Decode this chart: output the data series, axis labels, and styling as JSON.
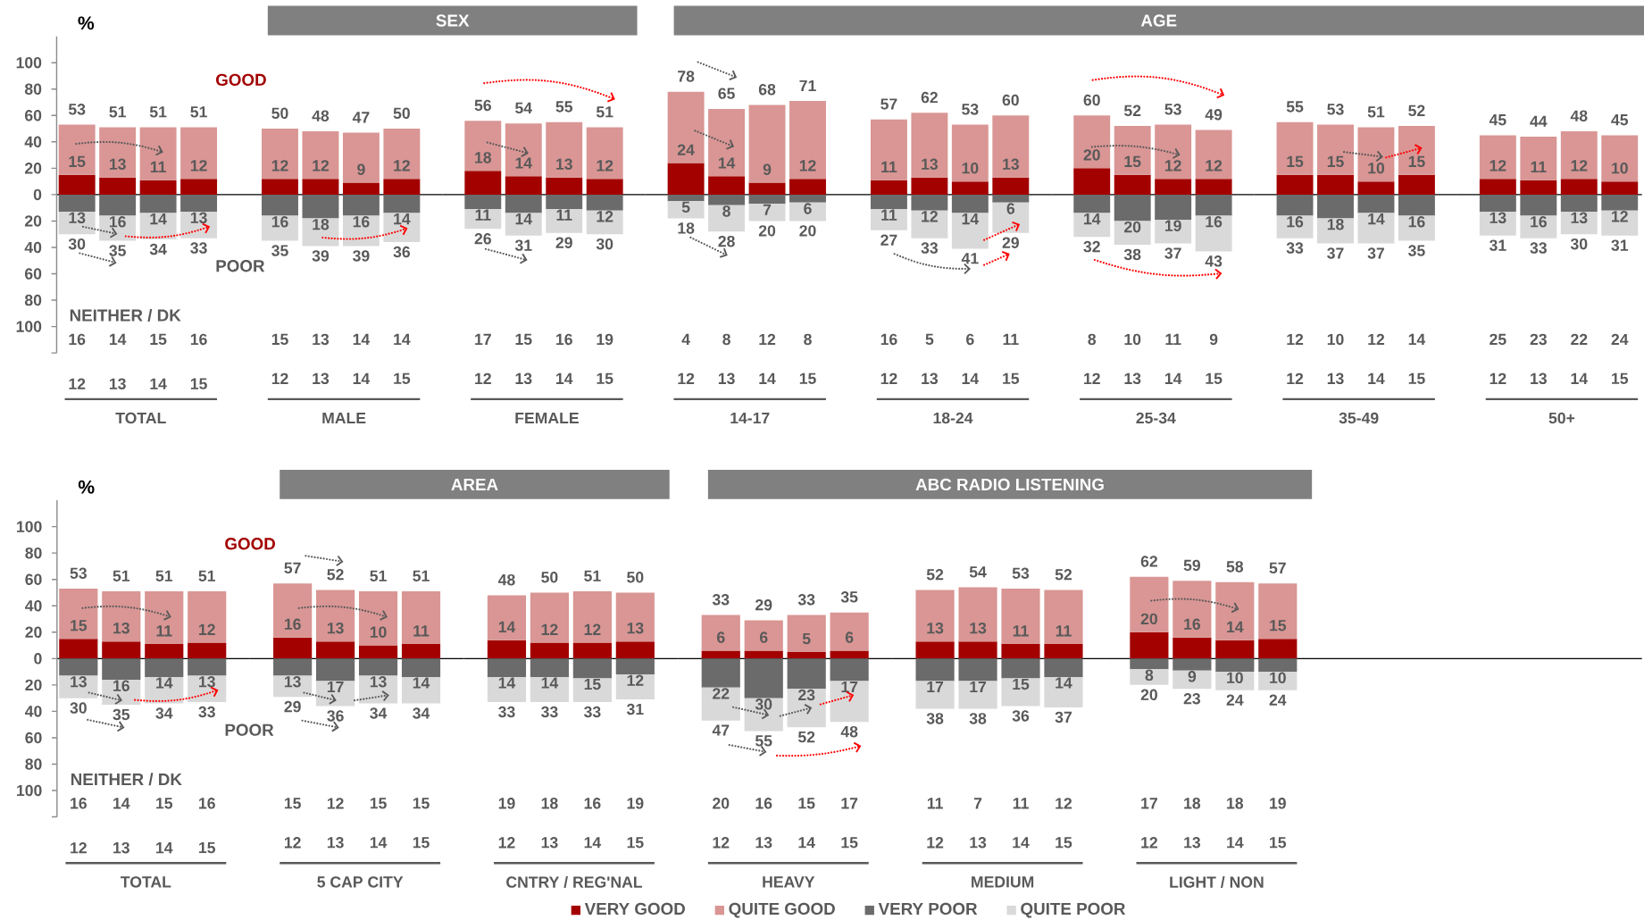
{
  "chart_data": [
    {
      "type": "bar",
      "stacked": true,
      "ylabel": "%",
      "xlabel": "TOTAL",
      "categories": [
        "12",
        "13",
        "14",
        "15"
      ],
      "ylim": [
        -120,
        120
      ],
      "yticks": [
        {
          "value": 100,
          "label": "100"
        },
        {
          "value": 80,
          "label": "80"
        },
        {
          "value": 60,
          "label": "60"
        },
        {
          "value": 40,
          "label": "40"
        },
        {
          "value": 20,
          "label": "20"
        },
        {
          "value": 0,
          "label": "0"
        },
        {
          "value": -20,
          "label": "20"
        },
        {
          "value": -40,
          "label": "40"
        },
        {
          "value": -60,
          "label": "60"
        },
        {
          "value": -80,
          "label": "80"
        },
        {
          "value": -100,
          "label": "100"
        },
        {
          "value": -120,
          "label": null
        }
      ],
      "series": [
        {
          "color": "#a30000",
          "values": [
            15,
            13,
            11,
            12
          ],
          "value_labels": [
            "15",
            "13",
            "11",
            "12"
          ]
        },
        {
          "color": "#d99694",
          "values": [
            38,
            38,
            40,
            39
          ]
        },
        {
          "color": "#6b6b6b",
          "values": [
            -13,
            -16,
            -14,
            -13
          ]
        },
        {
          "color": "#d9d9d9",
          "values": [
            -17,
            -19,
            -20,
            -20
          ]
        }
      ],
      "annotations": [
        "GOOD",
        "POOR",
        "NEITHER / DK",
        {
          "text": "53",
          "x": "12",
          "y": 53
        },
        {
          "text": "51",
          "x": "13",
          "y": 51
        },
        {
          "text": "51",
          "x": "14",
          "y": 51
        },
        {
          "text": "51",
          "x": "15",
          "y": 51
        },
        {
          "text": "13",
          "x": "12",
          "y": -13
        },
        {
          "text": "16",
          "x": "13",
          "y": -16
        },
        {
          "text": "14",
          "x": "14",
          "y": -14
        },
        {
          "text": "13",
          "x": "15",
          "y": -13
        },
        {
          "text": "30",
          "x": "12",
          "y": -30
        },
        {
          "text": "35",
          "x": "13",
          "y": -35
        },
        {
          "text": "34",
          "x": "14",
          "y": -34
        },
        {
          "text": "33",
          "x": "15",
          "y": -33
        },
        "16",
        "14",
        "15",
        "16"
      ]
    },
    {
      "type": "other",
      "title": "SEX"
    },
    {
      "type": "bar",
      "stacked": true,
      "xlabel": "MALE",
      "categories": [
        "12",
        "13",
        "14",
        "15"
      ],
      "tick_labels": "x",
      "series": [
        {
          "color": "#a30000",
          "values": [
            12,
            12,
            9,
            12
          ],
          "value_labels": [
            "12",
            "12",
            "9",
            "12"
          ]
        },
        {
          "color": "#d99694",
          "values": [
            38,
            36,
            38,
            38
          ]
        },
        {
          "color": "#6b6b6b",
          "values": [
            -16,
            -18,
            -16,
            -14
          ]
        },
        {
          "color": "#d9d9d9",
          "values": [
            -19,
            -21,
            -23,
            -22
          ]
        }
      ],
      "annotations": [
        {
          "text": "50",
          "x": "12",
          "y": 50
        },
        {
          "text": "48",
          "x": "13",
          "y": 48
        },
        {
          "text": "47",
          "x": "14",
          "y": 47
        },
        {
          "text": "50",
          "x": "15",
          "y": 50
        },
        {
          "text": "16",
          "x": "12",
          "y": -16
        },
        {
          "text": "18",
          "x": "13",
          "y": -18
        },
        {
          "text": "16",
          "x": "14",
          "y": -16
        },
        {
          "text": "14",
          "x": "15",
          "y": -14
        },
        {
          "text": "35",
          "x": "12",
          "y": -35
        },
        {
          "text": "39",
          "x": "13",
          "y": -39
        },
        {
          "text": "39",
          "x": "14",
          "y": -39
        },
        {
          "text": "36",
          "x": "15",
          "y": -36
        },
        "15",
        "13",
        "14",
        "14"
      ]
    },
    {
      "type": "bar",
      "stacked": true,
      "xlabel": "FEMALE",
      "categories": [
        "12",
        "13",
        "14",
        "15"
      ],
      "tick_labels": "x",
      "series": [
        {
          "color": "#a30000",
          "values": [
            18,
            14,
            13,
            12
          ],
          "value_labels": [
            "18",
            "14",
            "13",
            "12"
          ]
        },
        {
          "color": "#d99694",
          "values": [
            38,
            40,
            42,
            39
          ]
        },
        {
          "color": "#6b6b6b",
          "values": [
            -11,
            -14,
            -11,
            -12
          ]
        },
        {
          "color": "#d9d9d9",
          "values": [
            -15,
            -17,
            -18,
            -18
          ]
        }
      ],
      "annotations": [
        {
          "text": "56",
          "x": "12",
          "y": 56
        },
        {
          "text": "54",
          "x": "13",
          "y": 54
        },
        {
          "text": "55",
          "x": "14",
          "y": 55
        },
        {
          "text": "51",
          "x": "15",
          "y": 51
        },
        {
          "text": "11",
          "x": "12",
          "y": -11
        },
        {
          "text": "14",
          "x": "13",
          "y": -14
        },
        {
          "text": "11",
          "x": "14",
          "y": -11
        },
        {
          "text": "12",
          "x": "15",
          "y": -12
        },
        {
          "text": "26",
          "x": "12",
          "y": -26
        },
        {
          "text": "31",
          "x": "13",
          "y": -31
        },
        {
          "text": "29",
          "x": "14",
          "y": -29
        },
        {
          "text": "30",
          "x": "15",
          "y": -30
        },
        "17",
        "15",
        "16",
        "19"
      ]
    },
    {
      "type": "other",
      "title": "AGE"
    },
    {
      "type": "bar",
      "stacked": true,
      "xlabel": "14-17",
      "categories": [
        "12",
        "13",
        "14",
        "15"
      ],
      "tick_labels": "x",
      "series": [
        {
          "color": "#a30000",
          "values": [
            24,
            14,
            9,
            12
          ],
          "value_labels": [
            "24",
            "14",
            "9",
            "12"
          ]
        },
        {
          "color": "#d99694",
          "values": [
            54,
            51,
            59,
            59
          ]
        },
        {
          "color": "#6b6b6b",
          "values": [
            -5,
            -8,
            -7,
            -6
          ]
        },
        {
          "color": "#d9d9d9",
          "values": [
            -13,
            -20,
            -13,
            -14
          ]
        }
      ],
      "annotations": [
        {
          "text": "78",
          "x": "12",
          "y": 78
        },
        {
          "text": "65",
          "x": "13",
          "y": 65
        },
        {
          "text": "68",
          "x": "14",
          "y": 68
        },
        {
          "text": "71",
          "x": "15",
          "y": 71
        },
        {
          "text": "5",
          "x": "12",
          "y": -5
        },
        {
          "text": "8",
          "x": "13",
          "y": -8
        },
        {
          "text": "7",
          "x": "14",
          "y": -7
        },
        {
          "text": "6",
          "x": "15",
          "y": -6
        },
        {
          "text": "18",
          "x": "12",
          "y": -18
        },
        {
          "text": "28",
          "x": "13",
          "y": -28
        },
        {
          "text": "20",
          "x": "14",
          "y": -20
        },
        {
          "text": "20",
          "x": "15",
          "y": -20
        },
        "4",
        "8",
        "12",
        "8"
      ]
    },
    {
      "type": "bar",
      "stacked": true,
      "xlabel": "18-24",
      "categories": [
        "12",
        "13",
        "14",
        "15"
      ],
      "tick_labels": "x",
      "series": [
        {
          "color": "#a30000",
          "values": [
            11,
            13,
            10,
            13
          ],
          "value_labels": [
            "11",
            "13",
            "10",
            "13"
          ]
        },
        {
          "color": "#d99694",
          "values": [
            46,
            49,
            43,
            47
          ]
        },
        {
          "color": "#6b6b6b",
          "values": [
            -11,
            -12,
            -14,
            -6
          ]
        },
        {
          "color": "#d9d9d9",
          "values": [
            -16,
            -21,
            -27,
            -23
          ]
        }
      ],
      "annotations": [
        {
          "text": "57",
          "x": "12",
          "y": 57
        },
        {
          "text": "62",
          "x": "13",
          "y": 62
        },
        {
          "text": "53",
          "x": "14",
          "y": 53
        },
        {
          "text": "60",
          "x": "15",
          "y": 60
        },
        {
          "text": "11",
          "x": "12",
          "y": -11
        },
        {
          "text": "12",
          "x": "13",
          "y": -12
        },
        {
          "text": "14",
          "x": "14",
          "y": -14
        },
        {
          "text": "6",
          "x": "15",
          "y": -6
        },
        {
          "text": "27",
          "x": "12",
          "y": -27
        },
        {
          "text": "33",
          "x": "13",
          "y": -33
        },
        {
          "text": "41",
          "x": "14",
          "y": -41
        },
        {
          "text": "29",
          "x": "15",
          "y": -29
        },
        "16",
        "5",
        "6",
        "11"
      ]
    },
    {
      "type": "bar",
      "stacked": true,
      "xlabel": "25-34",
      "categories": [
        "12",
        "13",
        "14",
        "15"
      ],
      "tick_labels": "x",
      "series": [
        {
          "color": "#a30000",
          "values": [
            20,
            15,
            12,
            12
          ],
          "value_labels": [
            "20",
            "15",
            "12",
            "12"
          ]
        },
        {
          "color": "#d99694",
          "values": [
            40,
            37,
            41,
            37
          ]
        },
        {
          "color": "#6b6b6b",
          "values": [
            -14,
            -20,
            -19,
            -16
          ]
        },
        {
          "color": "#d9d9d9",
          "values": [
            -18,
            -18,
            -18,
            -27
          ]
        }
      ],
      "annotations": [
        {
          "text": "60",
          "x": "12",
          "y": 60
        },
        {
          "text": "52",
          "x": "13",
          "y": 52
        },
        {
          "text": "53",
          "x": "14",
          "y": 53
        },
        {
          "text": "49",
          "x": "15",
          "y": 49
        },
        {
          "text": "14",
          "x": "12",
          "y": -14
        },
        {
          "text": "20",
          "x": "13",
          "y": -20
        },
        {
          "text": "19",
          "x": "14",
          "y": -19
        },
        {
          "text": "16",
          "x": "15",
          "y": -16
        },
        {
          "text": "32",
          "x": "12",
          "y": -32
        },
        {
          "text": "38",
          "x": "13",
          "y": -38
        },
        {
          "text": "37",
          "x": "14",
          "y": -37
        },
        {
          "text": "43",
          "x": "15",
          "y": -43
        },
        "8",
        "10",
        "11",
        "9"
      ]
    },
    {
      "type": "bar",
      "stacked": true,
      "xlabel": "35-49",
      "categories": [
        "12",
        "13",
        "14",
        "15"
      ],
      "tick_labels": "x",
      "series": [
        {
          "color": "#a30000",
          "values": [
            15,
            15,
            10,
            15
          ],
          "value_labels": [
            "15",
            "15",
            "10",
            "15"
          ]
        },
        {
          "color": "#d99694",
          "values": [
            40,
            38,
            41,
            37
          ]
        },
        {
          "color": "#6b6b6b",
          "values": [
            -16,
            -18,
            -14,
            -16
          ]
        },
        {
          "color": "#d9d9d9",
          "values": [
            -17,
            -19,
            -23,
            -19
          ]
        }
      ],
      "annotations": [
        {
          "text": "55",
          "x": "12",
          "y": 55
        },
        {
          "text": "53",
          "x": "13",
          "y": 53
        },
        {
          "text": "51",
          "x": "14",
          "y": 51
        },
        {
          "text": "52",
          "x": "15",
          "y": 52
        },
        {
          "text": "16",
          "x": "12",
          "y": -16
        },
        {
          "text": "18",
          "x": "13",
          "y": -18
        },
        {
          "text": "14",
          "x": "14",
          "y": -14
        },
        {
          "text": "16",
          "x": "15",
          "y": -16
        },
        {
          "text": "33",
          "x": "12",
          "y": -33
        },
        {
          "text": "37",
          "x": "13",
          "y": -37
        },
        {
          "text": "37",
          "x": "14",
          "y": -37
        },
        {
          "text": "35",
          "x": "15",
          "y": -35
        },
        "12",
        "10",
        "12",
        "14"
      ]
    },
    {
      "type": "bar",
      "stacked": true,
      "xlabel": "50+",
      "categories": [
        "12",
        "13",
        "14",
        "15"
      ],
      "tick_labels": "x",
      "series": [
        {
          "color": "#a30000",
          "values": [
            12,
            11,
            12,
            10
          ],
          "value_labels": [
            "12",
            "11",
            "12",
            "10"
          ]
        },
        {
          "color": "#d99694",
          "values": [
            33,
            33,
            36,
            35
          ]
        },
        {
          "color": "#6b6b6b",
          "values": [
            -13,
            -16,
            -13,
            -12
          ]
        },
        {
          "color": "#d9d9d9",
          "values": [
            -18,
            -17,
            -17,
            -19
          ]
        }
      ],
      "annotations": [
        {
          "text": "45",
          "x": "12",
          "y": 45
        },
        {
          "text": "44",
          "x": "13",
          "y": 44
        },
        {
          "text": "48",
          "x": "14",
          "y": 48
        },
        {
          "text": "45",
          "x": "15",
          "y": 45
        },
        {
          "text": "13",
          "x": "12",
          "y": -13
        },
        {
          "text": "16",
          "x": "13",
          "y": -16
        },
        {
          "text": "13",
          "x": "14",
          "y": -13
        },
        {
          "text": "12",
          "x": "15",
          "y": -12
        },
        {
          "text": "31",
          "x": "12",
          "y": -31
        },
        {
          "text": "33",
          "x": "13",
          "y": -33
        },
        {
          "text": "30",
          "x": "14",
          "y": -30
        },
        {
          "text": "31",
          "x": "15",
          "y": -31
        },
        "25",
        "23",
        "22",
        "24"
      ]
    },
    {
      "type": "bar",
      "stacked": true,
      "ylabel": "%",
      "xlabel": "TOTAL",
      "categories": [
        "12",
        "13",
        "14",
        "15"
      ],
      "ylim": [
        -120,
        120
      ],
      "yticks": [
        {
          "value": 100,
          "label": "100"
        },
        {
          "value": 80,
          "label": "80"
        },
        {
          "value": 60,
          "label": "60"
        },
        {
          "value": 40,
          "label": "40"
        },
        {
          "value": 20,
          "label": "20"
        },
        {
          "value": 0,
          "label": "0"
        },
        {
          "value": -20,
          "label": "20"
        },
        {
          "value": -40,
          "label": "40"
        },
        {
          "value": -60,
          "label": "60"
        },
        {
          "value": -80,
          "label": "80"
        },
        {
          "value": -100,
          "label": "100"
        },
        {
          "value": -120,
          "label": null
        }
      ],
      "series": [
        {
          "color": "#a30000",
          "values": [
            15,
            13,
            11,
            12
          ],
          "value_labels": [
            "15",
            "13",
            "11",
            "12"
          ]
        },
        {
          "color": "#d99694",
          "values": [
            38,
            38,
            40,
            39
          ]
        },
        {
          "color": "#6b6b6b",
          "values": [
            -13,
            -16,
            -14,
            -13
          ]
        },
        {
          "color": "#d9d9d9",
          "values": [
            -17,
            -19,
            -20,
            -20
          ]
        }
      ],
      "annotations": [
        "GOOD",
        "POOR",
        "NEITHER / DK",
        {
          "text": "53",
          "x": "12",
          "y": 53
        },
        {
          "text": "51",
          "x": "13",
          "y": 51
        },
        {
          "text": "51",
          "x": "14",
          "y": 51
        },
        {
          "text": "51",
          "x": "15",
          "y": 51
        },
        {
          "text": "13",
          "x": "12",
          "y": -13
        },
        {
          "text": "16",
          "x": "13",
          "y": -16
        },
        {
          "text": "14",
          "x": "14",
          "y": -14
        },
        {
          "text": "13",
          "x": "15",
          "y": -13
        },
        {
          "text": "30",
          "x": "12",
          "y": -30
        },
        {
          "text": "35",
          "x": "13",
          "y": -35
        },
        {
          "text": "34",
          "x": "14",
          "y": -34
        },
        {
          "text": "33",
          "x": "15",
          "y": -33
        },
        "16",
        "14",
        "15",
        "16"
      ]
    },
    {
      "type": "other",
      "title": "AREA"
    },
    {
      "type": "bar",
      "stacked": true,
      "xlabel": "5 CAP CITY",
      "categories": [
        "12",
        "13",
        "14",
        "15"
      ],
      "tick_labels": "x",
      "series": [
        {
          "color": "#a30000",
          "values": [
            16,
            13,
            10,
            11
          ],
          "value_labels": [
            "16",
            "13",
            "10",
            "11"
          ]
        },
        {
          "color": "#d99694",
          "values": [
            41,
            39,
            41,
            40
          ]
        },
        {
          "color": "#6b6b6b",
          "values": [
            -13,
            -17,
            -13,
            -14
          ]
        },
        {
          "color": "#d9d9d9",
          "values": [
            -16,
            -19,
            -21,
            -20
          ]
        }
      ],
      "annotations": [
        {
          "text": "57",
          "x": "12",
          "y": 57
        },
        {
          "text": "52",
          "x": "13",
          "y": 52
        },
        {
          "text": "51",
          "x": "14",
          "y": 51
        },
        {
          "text": "51",
          "x": "15",
          "y": 51
        },
        {
          "text": "13",
          "x": "12",
          "y": -13
        },
        {
          "text": "17",
          "x": "13",
          "y": -17
        },
        {
          "text": "13",
          "x": "14",
          "y": -13
        },
        {
          "text": "14",
          "x": "15",
          "y": -14
        },
        {
          "text": "29",
          "x": "12",
          "y": -29
        },
        {
          "text": "36",
          "x": "13",
          "y": -36
        },
        {
          "text": "34",
          "x": "14",
          "y": -34
        },
        {
          "text": "34",
          "x": "15",
          "y": -34
        },
        "15",
        "12",
        "15",
        "15"
      ]
    },
    {
      "type": "bar",
      "stacked": true,
      "xlabel": "CNTRY / REG'NAL",
      "categories": [
        "12",
        "13",
        "14",
        "15"
      ],
      "tick_labels": "x",
      "series": [
        {
          "color": "#a30000",
          "values": [
            14,
            12,
            12,
            13
          ],
          "value_labels": [
            "14",
            "12",
            "12",
            "13"
          ]
        },
        {
          "color": "#d99694",
          "values": [
            34,
            38,
            39,
            37
          ]
        },
        {
          "color": "#6b6b6b",
          "values": [
            -14,
            -14,
            -15,
            -12
          ]
        },
        {
          "color": "#d9d9d9",
          "values": [
            -19,
            -19,
            -18,
            -19
          ]
        }
      ],
      "annotations": [
        {
          "text": "48",
          "x": "12",
          "y": 48
        },
        {
          "text": "50",
          "x": "13",
          "y": 50
        },
        {
          "text": "51",
          "x": "14",
          "y": 51
        },
        {
          "text": "50",
          "x": "15",
          "y": 50
        },
        {
          "text": "14",
          "x": "12",
          "y": -14
        },
        {
          "text": "14",
          "x": "13",
          "y": -14
        },
        {
          "text": "15",
          "x": "14",
          "y": -15
        },
        {
          "text": "12",
          "x": "15",
          "y": -12
        },
        {
          "text": "33",
          "x": "12",
          "y": -33
        },
        {
          "text": "33",
          "x": "13",
          "y": -33
        },
        {
          "text": "33",
          "x": "14",
          "y": -33
        },
        {
          "text": "31",
          "x": "15",
          "y": -31
        },
        "19",
        "18",
        "16",
        "19"
      ]
    },
    {
      "type": "other",
      "title": "ABC RADIO LISTENING"
    },
    {
      "type": "bar",
      "stacked": true,
      "xlabel": "HEAVY",
      "legend": "bottom",
      "categories": [
        "12",
        "13",
        "14",
        "15"
      ],
      "tick_labels": "x",
      "series": [
        {
          "name": "VERY GOOD",
          "color": "#a30000",
          "values": [
            6,
            6,
            5,
            6
          ],
          "value_labels": [
            "6",
            "6",
            "5",
            "6"
          ]
        },
        {
          "name": "QUITE GOOD",
          "color": "#d99694",
          "values": [
            27,
            23,
            28,
            29
          ]
        },
        {
          "name": "VERY POOR",
          "color": "#6b6b6b",
          "values": [
            -22,
            -30,
            -23,
            -17
          ]
        },
        {
          "name": "QUITE POOR",
          "color": "#d9d9d9",
          "values": [
            -25,
            -25,
            -29,
            -31
          ]
        }
      ],
      "annotations": [
        {
          "text": "33",
          "x": "12",
          "y": 33
        },
        {
          "text": "29",
          "x": "13",
          "y": 29
        },
        {
          "text": "33",
          "x": "14",
          "y": 33
        },
        {
          "text": "35",
          "x": "15",
          "y": 35
        },
        {
          "text": "22",
          "x": "12",
          "y": -22
        },
        {
          "text": "30",
          "x": "13",
          "y": -30
        },
        {
          "text": "23",
          "x": "14",
          "y": -23
        },
        {
          "text": "17",
          "x": "15",
          "y": -17
        },
        {
          "text": "47",
          "x": "12",
          "y": -47
        },
        {
          "text": "55",
          "x": "13",
          "y": -55
        },
        {
          "text": "52",
          "x": "14",
          "y": -52
        },
        {
          "text": "48",
          "x": "15",
          "y": -48
        },
        "20",
        "16",
        "15",
        "17"
      ]
    },
    {
      "type": "bar",
      "stacked": true,
      "xlabel": "MEDIUM",
      "categories": [
        "12",
        "13",
        "14",
        "15"
      ],
      "tick_labels": "x",
      "series": [
        {
          "color": "#a30000",
          "values": [
            13,
            13,
            11,
            11
          ],
          "value_labels": [
            "13",
            "13",
            "11",
            "11"
          ]
        },
        {
          "color": "#d99694",
          "values": [
            39,
            41,
            42,
            41
          ]
        },
        {
          "color": "#6b6b6b",
          "values": [
            -17,
            -17,
            -15,
            -14
          ]
        },
        {
          "color": "#d9d9d9",
          "values": [
            -21,
            -21,
            -21,
            -23
          ]
        }
      ],
      "annotations": [
        {
          "text": "52",
          "x": "12",
          "y": 52
        },
        {
          "text": "54",
          "x": "13",
          "y": 54
        },
        {
          "text": "53",
          "x": "14",
          "y": 53
        },
        {
          "text": "52",
          "x": "15",
          "y": 52
        },
        {
          "text": "17",
          "x": "12",
          "y": -17
        },
        {
          "text": "17",
          "x": "13",
          "y": -17
        },
        {
          "text": "15",
          "x": "14",
          "y": -15
        },
        {
          "text": "14",
          "x": "15",
          "y": -14
        },
        {
          "text": "38",
          "x": "12",
          "y": -38
        },
        {
          "text": "38",
          "x": "13",
          "y": -38
        },
        {
          "text": "36",
          "x": "14",
          "y": -36
        },
        {
          "text": "37",
          "x": "15",
          "y": -37
        },
        "11",
        "7",
        "11",
        "12"
      ]
    },
    {
      "type": "bar",
      "stacked": true,
      "xlabel": "LIGHT / NON",
      "categories": [
        "12",
        "13",
        "14",
        "15"
      ],
      "tick_labels": "x",
      "series": [
        {
          "color": "#a30000",
          "values": [
            20,
            16,
            14,
            15
          ],
          "value_labels": [
            "20",
            "16",
            "14",
            "15"
          ]
        },
        {
          "color": "#d99694",
          "values": [
            42,
            43,
            44,
            42
          ]
        },
        {
          "color": "#6b6b6b",
          "values": [
            -8,
            -9,
            -10,
            -10
          ]
        },
        {
          "color": "#d9d9d9",
          "values": [
            -12,
            -14,
            -14,
            -14
          ]
        }
      ],
      "annotations": [
        {
          "text": "62",
          "x": "12",
          "y": 62
        },
        {
          "text": "59",
          "x": "13",
          "y": 59
        },
        {
          "text": "58",
          "x": "14",
          "y": 58
        },
        {
          "text": "57",
          "x": "15",
          "y": 57
        },
        {
          "text": "8",
          "x": "12",
          "y": -8
        },
        {
          "text": "9",
          "x": "13",
          "y": -9
        },
        {
          "text": "10",
          "x": "14",
          "y": -10
        },
        {
          "text": "10",
          "x": "15",
          "y": -10
        },
        {
          "text": "20",
          "x": "12",
          "y": -20
        },
        {
          "text": "23",
          "x": "13",
          "y": -23
        },
        {
          "text": "24",
          "x": "14",
          "y": -24
        },
        {
          "text": "24",
          "x": "15",
          "y": -24
        },
        "17",
        "18",
        "18",
        "19"
      ]
    }
  ]
}
